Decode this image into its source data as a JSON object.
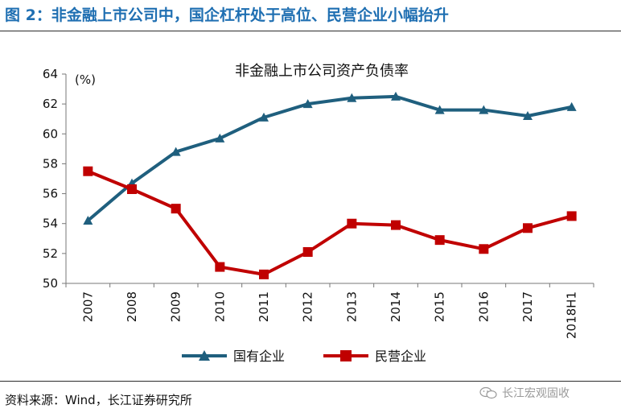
{
  "figure": {
    "title": "图 2：非金融上市公司中，国企杠杆处于高位、民营企业小幅抬升",
    "source": "资料来源：Wind，长江证券研究所",
    "watermark": "长江宏观固收"
  },
  "chart_data": {
    "type": "line",
    "title": "非金融上市公司资产负债率",
    "ylabel": "(%)",
    "categories": [
      "2007",
      "2008",
      "2009",
      "2010",
      "2011",
      "2012",
      "2013",
      "2014",
      "2015",
      "2016",
      "2017",
      "2018H1"
    ],
    "ylim": [
      50,
      64
    ],
    "yticks": [
      50,
      52,
      54,
      56,
      58,
      60,
      62,
      64
    ],
    "grid": false,
    "legend": "bottom",
    "series": [
      {
        "name": "国有企业",
        "marker": "triangle",
        "color": "#1f5f7e",
        "values": [
          54.2,
          56.7,
          58.8,
          59.7,
          61.1,
          62.0,
          62.4,
          62.5,
          61.6,
          61.6,
          61.2,
          61.8
        ]
      },
      {
        "name": "民营企业",
        "marker": "square",
        "color": "#c00000",
        "values": [
          57.5,
          56.3,
          55.0,
          51.1,
          50.6,
          52.1,
          54.0,
          53.9,
          52.9,
          52.3,
          53.7,
          54.5
        ]
      }
    ]
  }
}
